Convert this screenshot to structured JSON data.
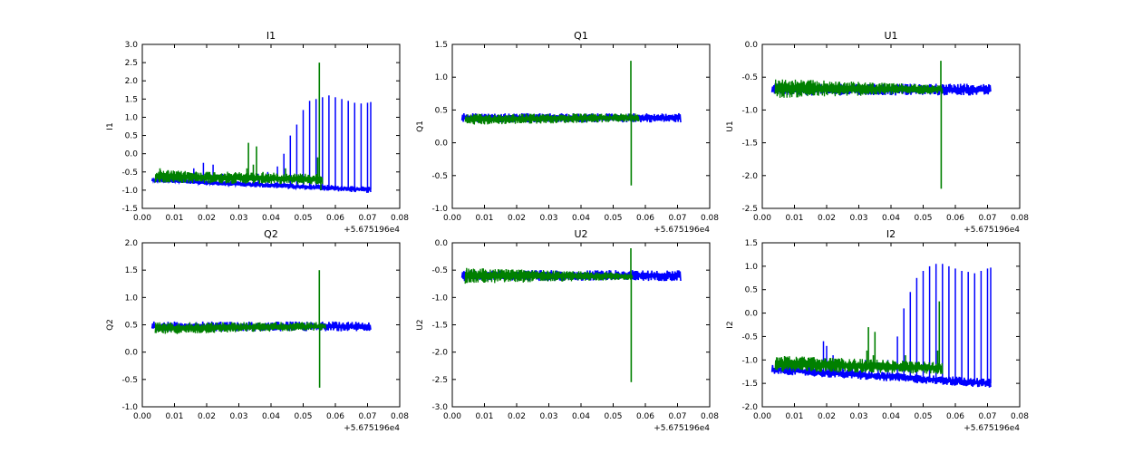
{
  "chart_data": [
    {
      "type": "line",
      "title": "I1",
      "xlabel": "",
      "ylabel": "I1",
      "x_offset_label": "+5.675196e4",
      "xlim": [
        0.0,
        0.08
      ],
      "ylim": [
        -1.5,
        3.0
      ],
      "x_ticks": [
        "0.00",
        "0.01",
        "0.02",
        "0.03",
        "0.04",
        "0.05",
        "0.06",
        "0.07",
        "0.08"
      ],
      "y_ticks": [
        "-1.5",
        "-1.0",
        "-0.5",
        "0.0",
        "0.5",
        "1.0",
        "1.5",
        "2.0",
        "2.5",
        "3.0"
      ],
      "grid": false,
      "series": [
        {
          "color": "#0000ff",
          "band": {
            "x_range": [
              0.003,
              0.071
            ],
            "start": [
              -0.78,
              -0.66
            ],
            "end": [
              -1.08,
              -0.9
            ]
          },
          "spikes": [
            [
              0.016,
              -0.4
            ],
            [
              0.019,
              -0.25
            ],
            [
              0.022,
              -0.3
            ],
            [
              0.025,
              -0.55
            ],
            [
              0.029,
              -0.6
            ],
            [
              0.032,
              -0.6
            ],
            [
              0.036,
              -0.55
            ],
            [
              0.039,
              -0.5
            ],
            [
              0.042,
              -0.35
            ],
            [
              0.044,
              0.0
            ],
            [
              0.046,
              0.5
            ],
            [
              0.048,
              0.8
            ],
            [
              0.05,
              1.2
            ],
            [
              0.052,
              1.45
            ],
            [
              0.054,
              1.5
            ],
            [
              0.056,
              1.55
            ],
            [
              0.058,
              1.6
            ],
            [
              0.06,
              1.55
            ],
            [
              0.062,
              1.5
            ],
            [
              0.064,
              1.45
            ],
            [
              0.066,
              1.4
            ],
            [
              0.068,
              1.38
            ],
            [
              0.07,
              1.4
            ],
            [
              0.071,
              1.42
            ]
          ]
        },
        {
          "color": "#008000",
          "band": {
            "x_range": [
              0.004,
              0.056
            ],
            "start": [
              -0.8,
              -0.45
            ],
            "end": [
              -0.85,
              -0.55
            ]
          },
          "spikes": [
            [
              0.0055,
              -0.4
            ],
            [
              0.008,
              -0.45
            ],
            [
              0.013,
              -0.5
            ],
            [
              0.0325,
              -0.4
            ],
            [
              0.033,
              0.3
            ],
            [
              0.0345,
              -0.3
            ],
            [
              0.0355,
              0.2
            ],
            [
              0.0375,
              -0.5
            ],
            [
              0.0445,
              -0.4
            ],
            [
              0.0545,
              -0.1
            ],
            [
              0.055,
              2.5
            ],
            [
              0.0555,
              -1.0
            ]
          ]
        }
      ]
    },
    {
      "type": "line",
      "title": "Q1",
      "xlabel": "",
      "ylabel": "Q1",
      "x_offset_label": "+5.675196e4",
      "xlim": [
        0.0,
        0.08
      ],
      "ylim": [
        -1.0,
        1.5
      ],
      "x_ticks": [
        "0.00",
        "0.01",
        "0.02",
        "0.03",
        "0.04",
        "0.05",
        "0.06",
        "0.07",
        "0.08"
      ],
      "y_ticks": [
        "-1.0",
        "-0.5",
        "0.0",
        "0.5",
        "1.0",
        "1.5"
      ],
      "grid": false,
      "series": [
        {
          "color": "#0000ff",
          "band": {
            "x_range": [
              0.003,
              0.071
            ],
            "start": [
              0.31,
              0.45
            ],
            "end": [
              0.31,
              0.45
            ]
          },
          "spikes": []
        },
        {
          "color": "#008000",
          "band": {
            "x_range": [
              0.004,
              0.058
            ],
            "start": [
              0.27,
              0.44
            ],
            "end": [
              0.32,
              0.45
            ]
          },
          "spikes": [
            [
              0.0555,
              1.25
            ],
            [
              0.0556,
              -0.65
            ]
          ]
        }
      ]
    },
    {
      "type": "line",
      "title": "U1",
      "xlabel": "",
      "ylabel": "U1",
      "x_offset_label": "+5.675196e4",
      "xlim": [
        0.0,
        0.08
      ],
      "ylim": [
        -2.5,
        0.0
      ],
      "x_ticks": [
        "0.00",
        "0.01",
        "0.02",
        "0.03",
        "0.04",
        "0.05",
        "0.06",
        "0.07",
        "0.08"
      ],
      "y_ticks": [
        "-2.5",
        "-2.0",
        "-1.5",
        "-1.0",
        "-0.5",
        "0.0"
      ],
      "grid": false,
      "series": [
        {
          "color": "#0000ff",
          "band": {
            "x_range": [
              0.003,
              0.071
            ],
            "start": [
              -0.78,
              -0.6
            ],
            "end": [
              -0.78,
              -0.6
            ]
          },
          "spikes": []
        },
        {
          "color": "#008000",
          "band": {
            "x_range": [
              0.004,
              0.056
            ],
            "start": [
              -0.82,
              -0.52
            ],
            "end": [
              -0.75,
              -0.62
            ]
          },
          "spikes": [
            [
              0.0555,
              -0.25
            ],
            [
              0.0556,
              -2.2
            ]
          ]
        }
      ]
    },
    {
      "type": "line",
      "title": "Q2",
      "xlabel": "",
      "ylabel": "Q2",
      "x_offset_label": "+5.675196e4",
      "xlim": [
        0.0,
        0.08
      ],
      "ylim": [
        -1.0,
        2.0
      ],
      "x_ticks": [
        "0.00",
        "0.01",
        "0.02",
        "0.03",
        "0.04",
        "0.05",
        "0.06",
        "0.07",
        "0.08"
      ],
      "y_ticks": [
        "-1.0",
        "-0.5",
        "0.0",
        "0.5",
        "1.0",
        "1.5",
        "2.0"
      ],
      "grid": false,
      "series": [
        {
          "color": "#0000ff",
          "band": {
            "x_range": [
              0.003,
              0.071
            ],
            "start": [
              0.38,
              0.56
            ],
            "end": [
              0.38,
              0.56
            ]
          },
          "spikes": []
        },
        {
          "color": "#008000",
          "band": {
            "x_range": [
              0.004,
              0.057
            ],
            "start": [
              0.32,
              0.55
            ],
            "end": [
              0.4,
              0.55
            ]
          },
          "spikes": [
            [
              0.055,
              1.5
            ],
            [
              0.0551,
              -0.65
            ]
          ]
        }
      ]
    },
    {
      "type": "line",
      "title": "U2",
      "xlabel": "",
      "ylabel": "U2",
      "x_offset_label": "+5.675196e4",
      "xlim": [
        0.0,
        0.08
      ],
      "ylim": [
        -3.0,
        0.0
      ],
      "x_ticks": [
        "0.00",
        "0.01",
        "0.02",
        "0.03",
        "0.04",
        "0.05",
        "0.06",
        "0.07",
        "0.08"
      ],
      "y_ticks": [
        "-3.0",
        "-2.5",
        "-2.0",
        "-1.5",
        "-1.0",
        "-0.5",
        "0.0"
      ],
      "grid": false,
      "series": [
        {
          "color": "#0000ff",
          "band": {
            "x_range": [
              0.003,
              0.071
            ],
            "start": [
              -0.7,
              -0.5
            ],
            "end": [
              -0.7,
              -0.5
            ]
          },
          "spikes": []
        },
        {
          "color": "#008000",
          "band": {
            "x_range": [
              0.004,
              0.056
            ],
            "start": [
              -0.75,
              -0.45
            ],
            "end": [
              -0.68,
              -0.55
            ]
          },
          "spikes": [
            [
              0.0555,
              -0.1
            ],
            [
              0.0556,
              -2.55
            ]
          ]
        }
      ]
    },
    {
      "type": "line",
      "title": "I2",
      "xlabel": "",
      "ylabel": "I2",
      "x_offset_label": "+5.675196e4",
      "xlim": [
        0.0,
        0.08
      ],
      "ylim": [
        -2.0,
        1.5
      ],
      "x_ticks": [
        "0.00",
        "0.01",
        "0.02",
        "0.03",
        "0.04",
        "0.05",
        "0.06",
        "0.07",
        "0.08"
      ],
      "y_ticks": [
        "-2.0",
        "-1.5",
        "-1.0",
        "-0.5",
        "0.0",
        "0.5",
        "1.0",
        "1.5"
      ],
      "grid": false,
      "series": [
        {
          "color": "#0000ff",
          "band": {
            "x_range": [
              0.003,
              0.071
            ],
            "start": [
              -1.3,
              -1.1
            ],
            "end": [
              -1.6,
              -1.4
            ]
          },
          "spikes": [
            [
              0.016,
              -0.95
            ],
            [
              0.019,
              -0.6
            ],
            [
              0.02,
              -0.7
            ],
            [
              0.022,
              -0.9
            ],
            [
              0.025,
              -1.0
            ],
            [
              0.028,
              -1.1
            ],
            [
              0.032,
              -1.0
            ],
            [
              0.036,
              -1.05
            ],
            [
              0.039,
              -1.0
            ],
            [
              0.042,
              -0.5
            ],
            [
              0.044,
              0.1
            ],
            [
              0.046,
              0.45
            ],
            [
              0.048,
              0.75
            ],
            [
              0.05,
              0.9
            ],
            [
              0.052,
              1.0
            ],
            [
              0.054,
              1.05
            ],
            [
              0.056,
              1.05
            ],
            [
              0.058,
              1.0
            ],
            [
              0.06,
              0.95
            ],
            [
              0.062,
              0.9
            ],
            [
              0.064,
              0.88
            ],
            [
              0.066,
              0.85
            ],
            [
              0.068,
              0.9
            ],
            [
              0.07,
              0.95
            ],
            [
              0.071,
              0.97
            ]
          ]
        },
        {
          "color": "#008000",
          "band": {
            "x_range": [
              0.004,
              0.056
            ],
            "start": [
              -1.25,
              -0.9
            ],
            "end": [
              -1.3,
              -1.05
            ]
          },
          "spikes": [
            [
              0.0055,
              -0.95
            ],
            [
              0.009,
              -1.0
            ],
            [
              0.013,
              -1.0
            ],
            [
              0.0325,
              -0.8
            ],
            [
              0.033,
              -0.3
            ],
            [
              0.0345,
              -0.9
            ],
            [
              0.035,
              -0.4
            ],
            [
              0.0375,
              -1.0
            ],
            [
              0.0445,
              -0.9
            ],
            [
              0.0545,
              -0.8
            ],
            [
              0.055,
              0.25
            ],
            [
              0.0555,
              -1.3
            ]
          ]
        }
      ]
    }
  ]
}
